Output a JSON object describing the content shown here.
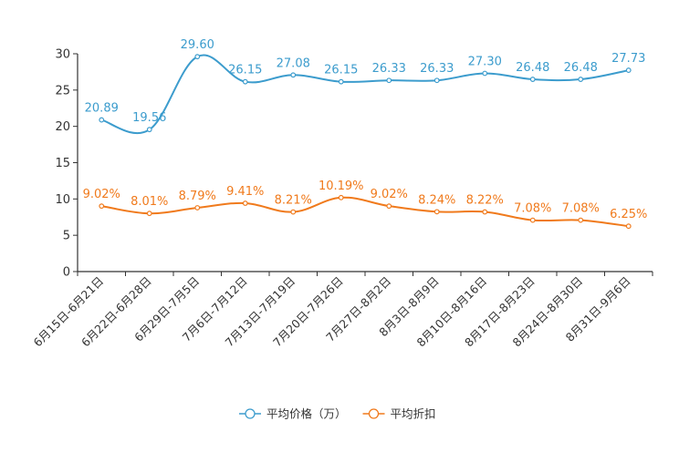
{
  "chart_data": {
    "type": "line",
    "title": "",
    "xlabel": "",
    "ylabel": "",
    "ylim": [
      0,
      30
    ],
    "yticks": [
      0,
      5,
      10,
      15,
      20,
      25,
      30
    ],
    "categories": [
      "6月15日-6月21日",
      "6月22日-6月28日",
      "6月29日-7月5日",
      "7月6日-7月12日",
      "7月13日-7月19日",
      "7月20日-7月26日",
      "7月27日-8月2日",
      "8月3日-8月9日",
      "8月10日-8月16日",
      "8月17日-8月23日",
      "8月24日-8月30日",
      "8月31日-9月6日"
    ],
    "series": [
      {
        "name": "平均价格（万）",
        "color": "#3c9ccd",
        "values": [
          20.89,
          19.56,
          29.6,
          26.15,
          27.08,
          26.15,
          26.33,
          26.33,
          27.3,
          26.48,
          26.48,
          27.73
        ],
        "labels": [
          "20.89",
          "19.56",
          "29.60",
          "26.15",
          "27.08",
          "26.15",
          "26.33",
          "26.33",
          "27.30",
          "26.48",
          "26.48",
          "27.73"
        ]
      },
      {
        "name": "平均折扣",
        "color": "#f07a1c",
        "values": [
          9.02,
          8.01,
          8.79,
          9.41,
          8.21,
          10.19,
          9.02,
          8.24,
          8.22,
          7.08,
          7.08,
          6.25
        ],
        "labels": [
          "9.02%",
          "8.01%",
          "8.79%",
          "9.41%",
          "8.21%",
          "10.19%",
          "9.02%",
          "8.24%",
          "8.22%",
          "7.08%",
          "7.08%",
          "6.25%"
        ]
      }
    ],
    "legend_position": "bottom-center"
  }
}
